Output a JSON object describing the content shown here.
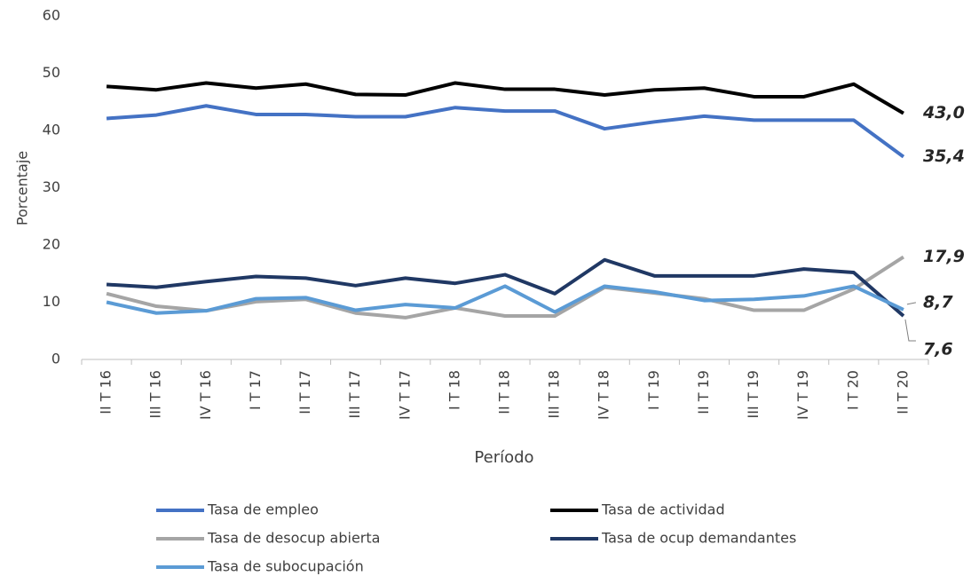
{
  "chart_data": {
    "type": "line",
    "x_label": "Período",
    "y_label": "Porcentaje",
    "categories": [
      "II T 16",
      "III T 16",
      "IV T 16",
      "I T 17",
      "II T 17",
      "III T 17",
      "IV T 17",
      "I T 18",
      "II T 18",
      "III T 18",
      "IV T 18",
      "I T 19",
      "II T 19",
      "III T 19",
      "IV T 19",
      "I T 20",
      "II T 20"
    ],
    "series": [
      {
        "name": "Tasa de empleo",
        "color": "#4472c4",
        "values": [
          42.1,
          42.7,
          44.3,
          42.8,
          42.8,
          42.4,
          42.4,
          44.0,
          43.4,
          43.4,
          40.3,
          41.5,
          42.5,
          41.8,
          41.8,
          41.8,
          35.4
        ],
        "value_labels": [
          null,
          null,
          null,
          null,
          null,
          null,
          null,
          null,
          null,
          null,
          null,
          null,
          null,
          null,
          null,
          null,
          "35,4"
        ]
      },
      {
        "name": "Tasa de actividad",
        "color": "#000000",
        "values": [
          47.7,
          47.1,
          48.3,
          47.4,
          48.1,
          46.3,
          46.2,
          48.3,
          47.2,
          47.2,
          46.2,
          47.1,
          47.4,
          45.9,
          45.9,
          48.1,
          43.0
        ],
        "value_labels": [
          null,
          null,
          null,
          null,
          null,
          null,
          null,
          null,
          null,
          null,
          null,
          null,
          null,
          null,
          null,
          null,
          "43,0"
        ]
      },
      {
        "name": "Tasa de desocup abierta",
        "color": "#a5a5a5",
        "values": [
          11.5,
          9.3,
          8.5,
          10.1,
          10.5,
          8.1,
          7.3,
          9.0,
          7.6,
          7.6,
          12.6,
          11.6,
          10.6,
          8.6,
          8.6,
          12.3,
          17.9
        ],
        "value_labels": [
          null,
          null,
          null,
          null,
          null,
          null,
          null,
          null,
          null,
          null,
          null,
          null,
          null,
          null,
          null,
          null,
          "17,9"
        ]
      },
      {
        "name": "Tasa de ocup demandantes",
        "color": "#203864",
        "values": [
          13.1,
          12.6,
          13.6,
          14.5,
          14.2,
          12.9,
          14.2,
          13.3,
          14.8,
          11.5,
          17.4,
          14.6,
          14.6,
          14.6,
          15.8,
          15.2,
          7.6
        ],
        "value_labels": [
          null,
          null,
          null,
          null,
          null,
          null,
          null,
          null,
          null,
          null,
          null,
          null,
          null,
          null,
          null,
          null,
          "7,6"
        ]
      },
      {
        "name": "Tasa de subocupación",
        "color": "#5b9bd5",
        "values": [
          10.0,
          8.1,
          8.5,
          10.6,
          10.8,
          8.6,
          9.6,
          9.0,
          12.8,
          8.3,
          12.8,
          11.8,
          10.3,
          10.5,
          11.1,
          12.8,
          8.7
        ],
        "value_labels": [
          null,
          null,
          null,
          null,
          null,
          null,
          null,
          null,
          null,
          null,
          null,
          null,
          null,
          null,
          null,
          null,
          "8,7"
        ]
      }
    ],
    "ylim": [
      0,
      60
    ],
    "yticks": [
      0,
      10,
      20,
      30,
      40,
      50,
      60
    ],
    "grid": false
  }
}
